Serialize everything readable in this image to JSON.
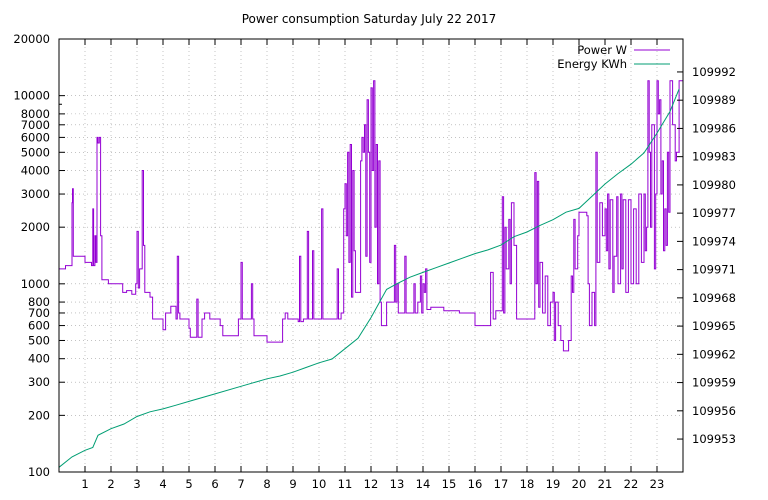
{
  "chart_data": {
    "type": "line",
    "title": "Power consumption Saturday July 22 2017",
    "xlabel": "",
    "ylabel": "",
    "x_ticks": [
      "1",
      "2",
      "3",
      "4",
      "5",
      "6",
      "7",
      "8",
      "9",
      "10",
      "11",
      "12",
      "13",
      "14",
      "15",
      "16",
      "17",
      "18",
      "19",
      "20",
      "21",
      "22",
      "23"
    ],
    "x_range": [
      0,
      24
    ],
    "y_axis": {
      "scale": "log",
      "ylim": [
        100,
        20000
      ],
      "ticks": [
        "100",
        "200",
        "300",
        "400",
        "500",
        "600",
        "700",
        "800",
        "1000",
        "2000",
        "3000",
        "4000",
        "5000",
        "6000",
        "7000",
        "8000",
        "10000",
        "20000"
      ]
    },
    "y2_axis": {
      "scale": "linear",
      "ylim": [
        109949.5,
        109995.5
      ],
      "ticks": [
        "109953",
        "109956",
        "109959",
        "109962",
        "109965",
        "109968",
        "109971",
        "109974",
        "109977",
        "109980",
        "109983",
        "109986",
        "109989",
        "109992"
      ]
    },
    "legend_position": "top-right",
    "grid": "dotted",
    "series": [
      {
        "name": "Power W",
        "color": "#9400d3",
        "axis": "y",
        "style": "steps",
        "points": [
          [
            0.0,
            1200
          ],
          [
            0.25,
            1250
          ],
          [
            0.45,
            1250
          ],
          [
            0.5,
            2700
          ],
          [
            0.52,
            3200
          ],
          [
            0.55,
            1400
          ],
          [
            0.9,
            1400
          ],
          [
            1.0,
            1300
          ],
          [
            1.1,
            1300
          ],
          [
            1.25,
            1250
          ],
          [
            1.3,
            2500
          ],
          [
            1.33,
            1250
          ],
          [
            1.38,
            1800
          ],
          [
            1.42,
            1300
          ],
          [
            1.46,
            6000
          ],
          [
            1.5,
            5600
          ],
          [
            1.55,
            6000
          ],
          [
            1.6,
            1800
          ],
          [
            1.65,
            1050
          ],
          [
            1.9,
            1000
          ],
          [
            2.3,
            1000
          ],
          [
            2.45,
            900
          ],
          [
            2.6,
            920
          ],
          [
            2.8,
            880
          ],
          [
            2.95,
            1000
          ],
          [
            3.0,
            1900
          ],
          [
            3.05,
            950
          ],
          [
            3.1,
            1200
          ],
          [
            3.2,
            4000
          ],
          [
            3.25,
            1600
          ],
          [
            3.3,
            900
          ],
          [
            3.5,
            850
          ],
          [
            3.6,
            650
          ],
          [
            3.75,
            650
          ],
          [
            3.95,
            650
          ],
          [
            4.0,
            570
          ],
          [
            4.1,
            700
          ],
          [
            4.3,
            760
          ],
          [
            4.5,
            650
          ],
          [
            4.55,
            1400
          ],
          [
            4.6,
            700
          ],
          [
            4.65,
            650
          ],
          [
            4.95,
            650
          ],
          [
            5.0,
            580
          ],
          [
            5.05,
            520
          ],
          [
            5.2,
            520
          ],
          [
            5.3,
            830
          ],
          [
            5.35,
            520
          ],
          [
            5.45,
            520
          ],
          [
            5.5,
            650
          ],
          [
            5.6,
            700
          ],
          [
            5.8,
            650
          ],
          [
            6.1,
            650
          ],
          [
            6.2,
            600
          ],
          [
            6.3,
            530
          ],
          [
            6.8,
            530
          ],
          [
            6.9,
            650
          ],
          [
            7.0,
            1300
          ],
          [
            7.05,
            650
          ],
          [
            7.3,
            650
          ],
          [
            7.4,
            1000
          ],
          [
            7.45,
            650
          ],
          [
            7.5,
            530
          ],
          [
            7.9,
            530
          ],
          [
            8.0,
            490
          ],
          [
            8.5,
            490
          ],
          [
            8.6,
            650
          ],
          [
            8.7,
            700
          ],
          [
            8.8,
            650
          ],
          [
            9.2,
            630
          ],
          [
            9.25,
            1400
          ],
          [
            9.3,
            630
          ],
          [
            9.4,
            650
          ],
          [
            9.5,
            650
          ],
          [
            9.55,
            1900
          ],
          [
            9.6,
            650
          ],
          [
            9.7,
            650
          ],
          [
            9.75,
            1500
          ],
          [
            9.8,
            650
          ],
          [
            9.95,
            650
          ],
          [
            10.1,
            2500
          ],
          [
            10.15,
            650
          ],
          [
            10.3,
            650
          ],
          [
            10.6,
            650
          ],
          [
            10.7,
            1200
          ],
          [
            10.75,
            650
          ],
          [
            10.85,
            700
          ],
          [
            10.95,
            2500
          ],
          [
            11.0,
            3400
          ],
          [
            11.05,
            1800
          ],
          [
            11.1,
            5000
          ],
          [
            11.15,
            1300
          ],
          [
            11.2,
            5500
          ],
          [
            11.25,
            850
          ],
          [
            11.3,
            4000
          ],
          [
            11.35,
            1500
          ],
          [
            11.4,
            900
          ],
          [
            11.5,
            900
          ],
          [
            11.6,
            4500
          ],
          [
            11.65,
            6000
          ],
          [
            11.7,
            5000
          ],
          [
            11.75,
            7000
          ],
          [
            11.8,
            1400
          ],
          [
            11.85,
            9500
          ],
          [
            11.9,
            5000
          ],
          [
            11.95,
            1300
          ],
          [
            12.0,
            11000
          ],
          [
            12.05,
            4000
          ],
          [
            12.1,
            12000
          ],
          [
            12.15,
            2000
          ],
          [
            12.2,
            5500
          ],
          [
            12.25,
            1000
          ],
          [
            12.3,
            4500
          ],
          [
            12.35,
            800
          ],
          [
            12.4,
            600
          ],
          [
            12.5,
            600
          ],
          [
            12.6,
            800
          ],
          [
            12.8,
            800
          ],
          [
            12.9,
            1600
          ],
          [
            12.95,
            800
          ],
          [
            13.0,
            1000
          ],
          [
            13.05,
            700
          ],
          [
            13.2,
            700
          ],
          [
            13.3,
            1400
          ],
          [
            13.35,
            700
          ],
          [
            13.6,
            700
          ],
          [
            13.65,
            1000
          ],
          [
            13.7,
            700
          ],
          [
            13.8,
            800
          ],
          [
            13.9,
            1100
          ],
          [
            13.95,
            700
          ],
          [
            14.0,
            1000
          ],
          [
            14.05,
            900
          ],
          [
            14.1,
            1200
          ],
          [
            14.15,
            730
          ],
          [
            14.3,
            750
          ],
          [
            14.5,
            750
          ],
          [
            14.8,
            720
          ],
          [
            15.0,
            720
          ],
          [
            15.4,
            700
          ],
          [
            15.6,
            700
          ],
          [
            15.9,
            700
          ],
          [
            16.0,
            600
          ],
          [
            16.3,
            600
          ],
          [
            16.5,
            600
          ],
          [
            16.6,
            1150
          ],
          [
            16.7,
            650
          ],
          [
            16.8,
            720
          ],
          [
            17.0,
            720
          ],
          [
            17.05,
            2900
          ],
          [
            17.1,
            700
          ],
          [
            17.15,
            2000
          ],
          [
            17.2,
            1200
          ],
          [
            17.3,
            2200
          ],
          [
            17.35,
            1000
          ],
          [
            17.4,
            2700
          ],
          [
            17.5,
            1600
          ],
          [
            17.6,
            650
          ],
          [
            18.0,
            650
          ],
          [
            18.2,
            650
          ],
          [
            18.3,
            3900
          ],
          [
            18.35,
            1000
          ],
          [
            18.4,
            3500
          ],
          [
            18.45,
            750
          ],
          [
            18.5,
            1300
          ],
          [
            18.6,
            700
          ],
          [
            18.7,
            1100
          ],
          [
            18.8,
            600
          ],
          [
            18.9,
            800
          ],
          [
            19.0,
            900
          ],
          [
            19.05,
            500
          ],
          [
            19.1,
            800
          ],
          [
            19.2,
            600
          ],
          [
            19.3,
            500
          ],
          [
            19.4,
            440
          ],
          [
            19.5,
            440
          ],
          [
            19.6,
            500
          ],
          [
            19.7,
            1100
          ],
          [
            19.75,
            900
          ],
          [
            19.8,
            2200
          ],
          [
            19.85,
            1200
          ],
          [
            19.95,
            1800
          ],
          [
            20.0,
            2400
          ],
          [
            20.1,
            2400
          ],
          [
            20.3,
            2300
          ],
          [
            20.35,
            1000
          ],
          [
            20.4,
            600
          ],
          [
            20.5,
            900
          ],
          [
            20.6,
            600
          ],
          [
            20.65,
            5000
          ],
          [
            20.7,
            1300
          ],
          [
            20.8,
            2700
          ],
          [
            20.9,
            1800
          ],
          [
            21.0,
            2500
          ],
          [
            21.05,
            1500
          ],
          [
            21.1,
            3000
          ],
          [
            21.15,
            1200
          ],
          [
            21.2,
            2800
          ],
          [
            21.3,
            900
          ],
          [
            21.35,
            1400
          ],
          [
            21.45,
            2900
          ],
          [
            21.5,
            1000
          ],
          [
            21.6,
            3000
          ],
          [
            21.65,
            1200
          ],
          [
            21.7,
            2800
          ],
          [
            21.8,
            900
          ],
          [
            21.9,
            2800
          ],
          [
            22.0,
            1000
          ],
          [
            22.1,
            2500
          ],
          [
            22.2,
            1000
          ],
          [
            22.3,
            3000
          ],
          [
            22.4,
            1300
          ],
          [
            22.5,
            3000
          ],
          [
            22.55,
            1500
          ],
          [
            22.6,
            2000
          ],
          [
            22.65,
            12000
          ],
          [
            22.7,
            5000
          ],
          [
            22.75,
            2000
          ],
          [
            22.8,
            7000
          ],
          [
            22.9,
            1200
          ],
          [
            22.95,
            3000
          ],
          [
            23.0,
            12000
          ],
          [
            23.05,
            8000
          ],
          [
            23.1,
            9500
          ],
          [
            23.15,
            3000
          ],
          [
            23.2,
            4500
          ],
          [
            23.25,
            1500
          ],
          [
            23.3,
            2500
          ],
          [
            23.35,
            1600
          ],
          [
            23.4,
            5000
          ],
          [
            23.45,
            2400
          ],
          [
            23.5,
            12000
          ],
          [
            23.6,
            7000
          ],
          [
            23.7,
            4500
          ],
          [
            23.75,
            5000
          ],
          [
            23.85,
            12000
          ]
        ]
      },
      {
        "name": "Energy KWh",
        "color": "#009e73",
        "axis": "y2",
        "style": "line",
        "points": [
          [
            0.0,
            109950.0
          ],
          [
            0.5,
            109951.1
          ],
          [
            1.0,
            109951.8
          ],
          [
            1.3,
            109952.1
          ],
          [
            1.5,
            109953.4
          ],
          [
            2.0,
            109954.1
          ],
          [
            2.5,
            109954.6
          ],
          [
            3.0,
            109955.4
          ],
          [
            3.5,
            109955.9
          ],
          [
            4.0,
            109956.2
          ],
          [
            4.5,
            109956.6
          ],
          [
            5.0,
            109957.0
          ],
          [
            5.5,
            109957.4
          ],
          [
            6.0,
            109957.8
          ],
          [
            7.0,
            109958.6
          ],
          [
            8.0,
            109959.4
          ],
          [
            8.5,
            109959.7
          ],
          [
            9.0,
            109960.1
          ],
          [
            9.5,
            109960.6
          ],
          [
            10.0,
            109961.1
          ],
          [
            10.5,
            109961.5
          ],
          [
            11.0,
            109962.6
          ],
          [
            11.5,
            109963.7
          ],
          [
            12.0,
            109965.9
          ],
          [
            12.3,
            109967.4
          ],
          [
            12.6,
            109968.9
          ],
          [
            13.0,
            109969.5
          ],
          [
            13.5,
            109970.2
          ],
          [
            14.0,
            109970.7
          ],
          [
            14.5,
            109971.2
          ],
          [
            15.0,
            109971.7
          ],
          [
            15.5,
            109972.2
          ],
          [
            16.0,
            109972.7
          ],
          [
            16.5,
            109973.1
          ],
          [
            17.0,
            109973.6
          ],
          [
            17.5,
            109974.5
          ],
          [
            18.0,
            109975.0
          ],
          [
            18.5,
            109975.7
          ],
          [
            19.0,
            109976.3
          ],
          [
            19.5,
            109977.1
          ],
          [
            20.0,
            109977.5
          ],
          [
            20.5,
            109978.8
          ],
          [
            21.0,
            109980.1
          ],
          [
            21.5,
            109981.2
          ],
          [
            22.0,
            109982.2
          ],
          [
            22.5,
            109983.4
          ],
          [
            23.0,
            109985.5
          ],
          [
            23.5,
            109987.8
          ],
          [
            23.85,
            109990.2
          ]
        ]
      }
    ]
  }
}
